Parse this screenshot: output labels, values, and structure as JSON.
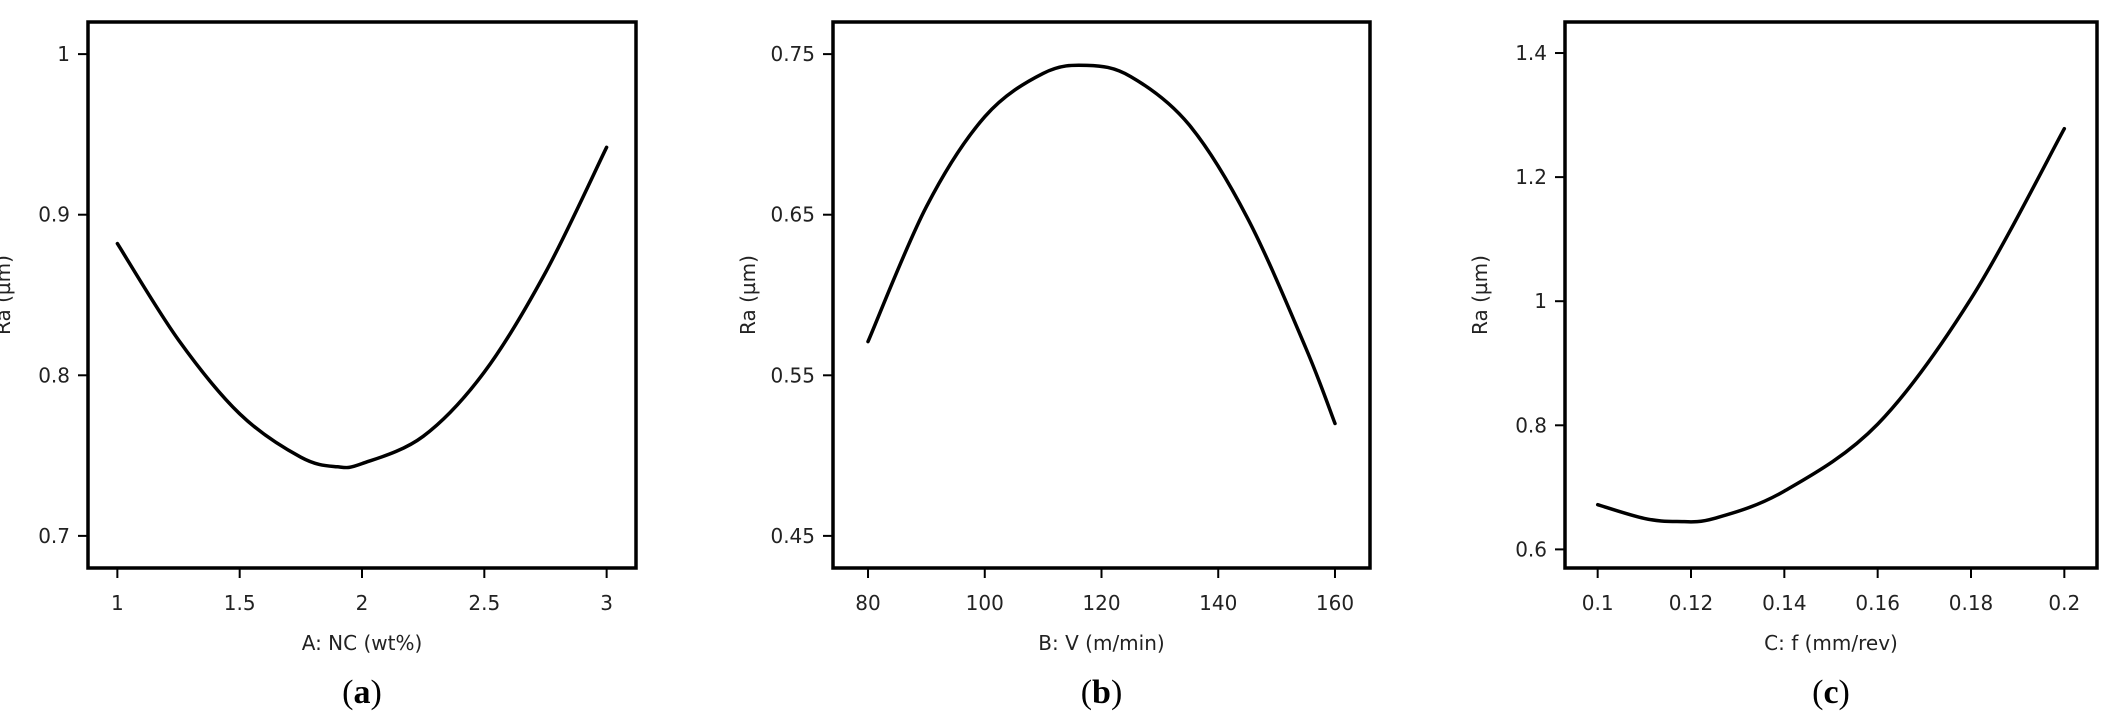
{
  "chart_data": [
    {
      "type": "line",
      "panel_label": "(a)",
      "panel_letter": "a",
      "xlabel": "A: NC (wt%)",
      "ylabel": "Ra (µm)",
      "xlim": [
        0.88,
        3.12
      ],
      "ylim": [
        0.68,
        1.02
      ],
      "xticks": [
        1,
        1.5,
        2,
        2.5,
        3
      ],
      "xtick_labels": [
        "1",
        "1.5",
        "2",
        "2.5",
        "3"
      ],
      "yticks": [
        0.7,
        0.8,
        0.9,
        1
      ],
      "ytick_labels": [
        "0.7",
        "0.8",
        "0.9",
        "1"
      ],
      "grid": false,
      "series": [
        {
          "x": [
            1.0,
            1.25,
            1.5,
            1.75,
            1.9,
            2.0,
            2.25,
            2.5,
            2.75,
            3.0
          ],
          "y": [
            0.882,
            0.822,
            0.776,
            0.749,
            0.743,
            0.745,
            0.762,
            0.802,
            0.864,
            0.942
          ]
        }
      ]
    },
    {
      "type": "line",
      "panel_label": "(b)",
      "panel_letter": "b",
      "xlabel": "B: V (m/min)",
      "ylabel": "Ra (µm)",
      "xlim": [
        74,
        166
      ],
      "ylim": [
        0.43,
        0.77
      ],
      "xticks": [
        80,
        100,
        120,
        140,
        160
      ],
      "xtick_labels": [
        "80",
        "100",
        "120",
        "140",
        "160"
      ],
      "yticks": [
        0.45,
        0.55,
        0.65,
        0.75
      ],
      "ytick_labels": [
        "0.45",
        "0.55",
        "0.65",
        "0.75"
      ],
      "grid": false,
      "series": [
        {
          "x": [
            80,
            90,
            100,
            110,
            117.5,
            125,
            135,
            145,
            155,
            160
          ],
          "y": [
            0.571,
            0.655,
            0.711,
            0.738,
            0.743,
            0.736,
            0.706,
            0.648,
            0.567,
            0.52
          ]
        }
      ]
    },
    {
      "type": "line",
      "panel_label": "(c)",
      "panel_letter": "c",
      "xlabel": "C: f (mm/rev)",
      "ylabel": "Ra (µm)",
      "xlim": [
        0.093,
        0.207
      ],
      "ylim": [
        0.57,
        1.45
      ],
      "xticks": [
        0.1,
        0.12,
        0.14,
        0.16,
        0.18,
        0.2
      ],
      "xtick_labels": [
        "0.1",
        "0.12",
        "0.14",
        "0.16",
        "0.18",
        "0.2"
      ],
      "yticks": [
        0.6,
        0.8,
        1,
        1.2,
        1.4
      ],
      "ytick_labels": [
        "0.6",
        "0.8",
        "1",
        "1.2",
        "1.4"
      ],
      "grid": false,
      "series": [
        {
          "x": [
            0.1,
            0.11,
            0.117,
            0.125,
            0.14,
            0.16,
            0.18,
            0.2
          ],
          "y": [
            0.672,
            0.65,
            0.645,
            0.65,
            0.694,
            0.802,
            1.004,
            1.278
          ]
        }
      ]
    }
  ]
}
